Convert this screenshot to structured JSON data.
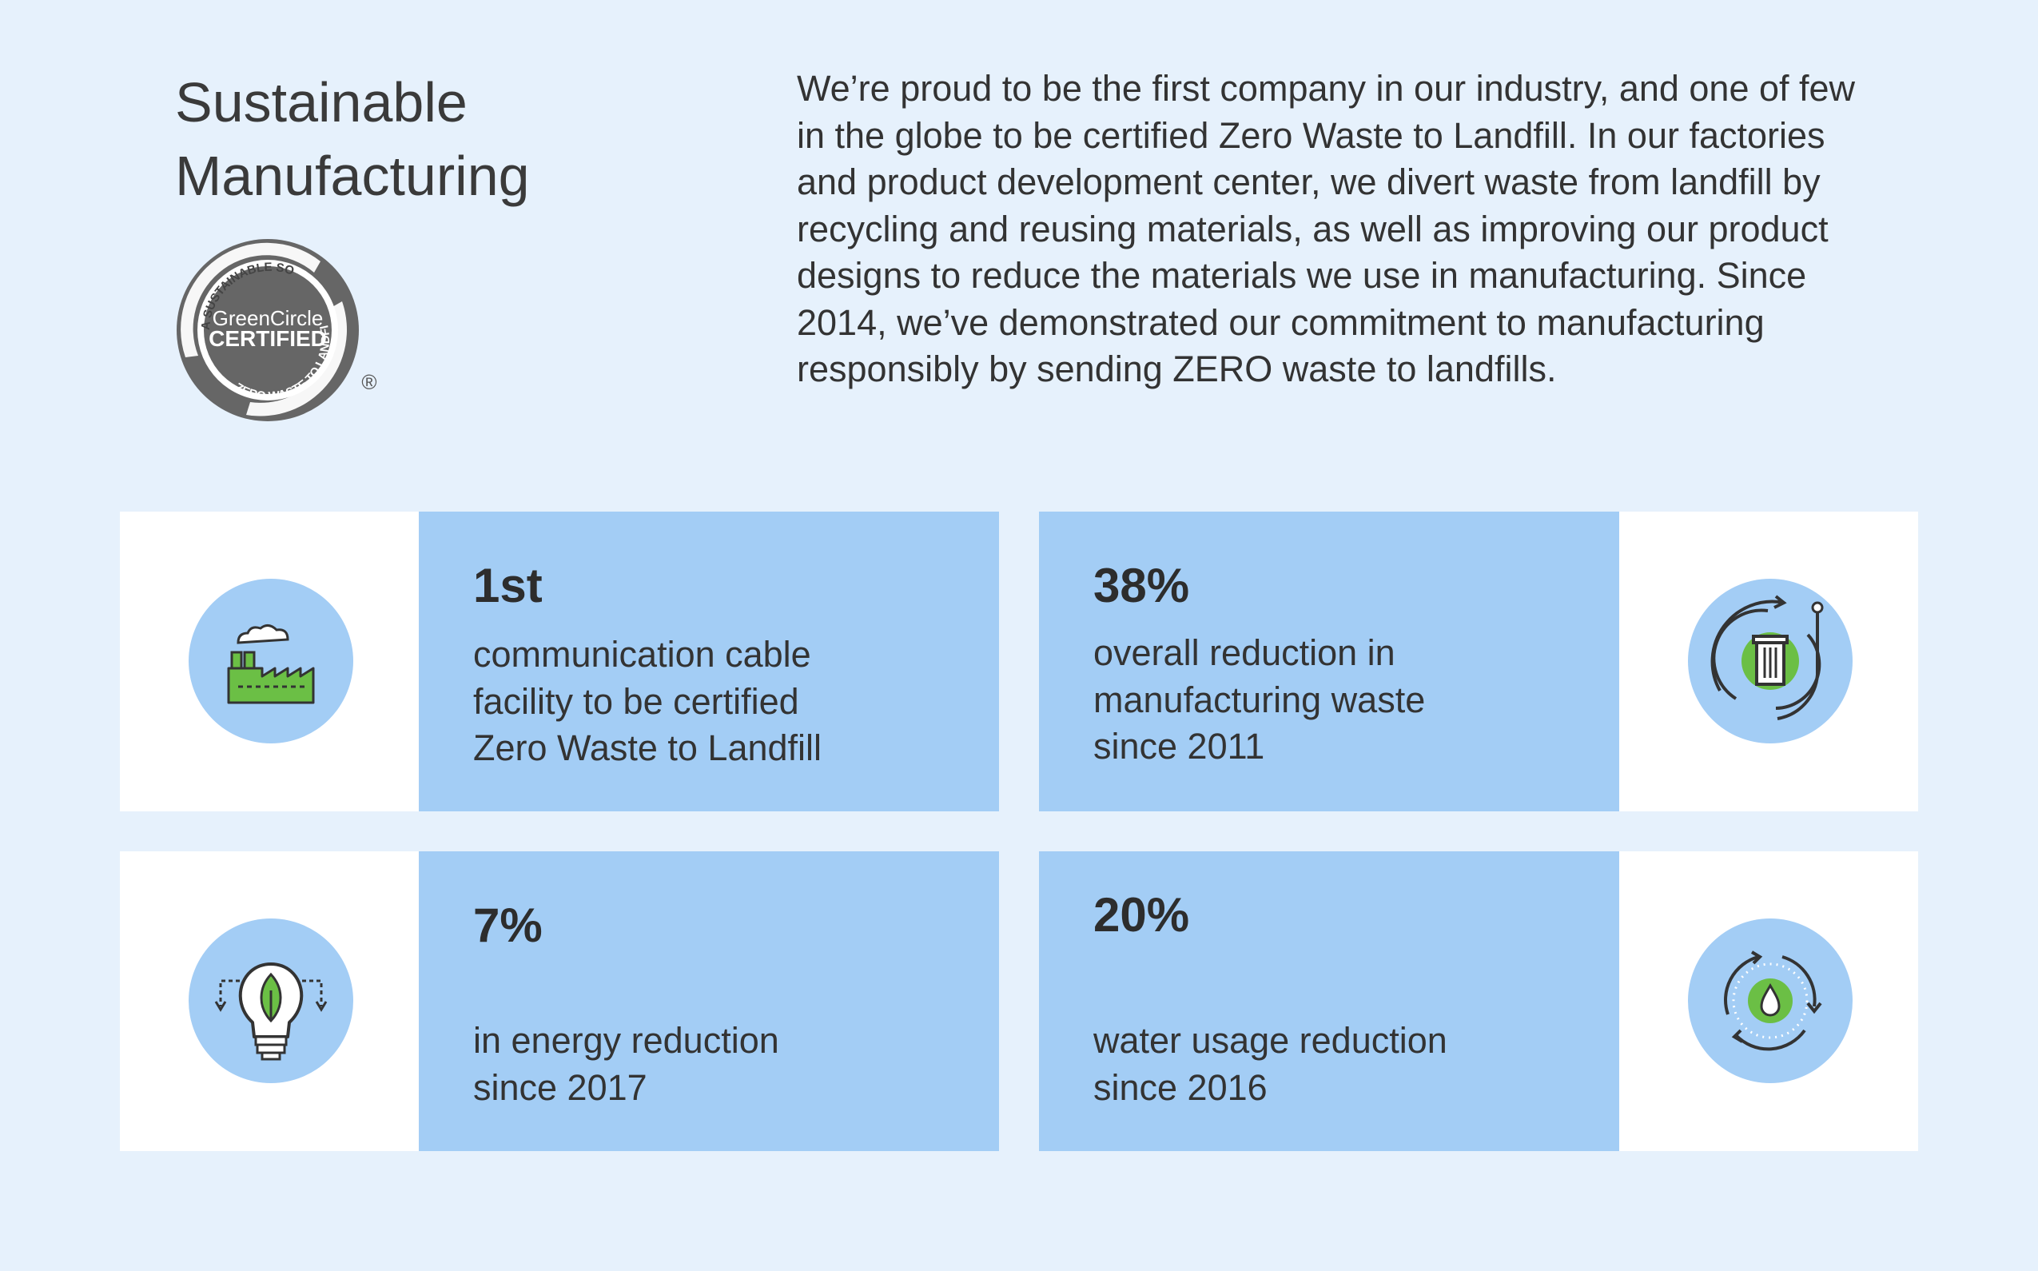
{
  "header": {
    "title_lines": [
      "Sustainable",
      "Manufacturing"
    ],
    "intro": "We’re proud to be the first company in our industry, and one of few in the globe to be certified Zero Waste to Landfill. In our factories and product development center, we divert waste from landfill by recycling and reusing materials, as well as improving our product designs to reduce the materials we use in manufacturing. Since 2014, we’ve demonstrated our commitment to manufacturing responsibly by sending ZERO waste to landfills."
  },
  "badge": {
    "ring_top": "A SUSTAINABLE SOLUTION",
    "ring_bottom": "ZERO WASTE TO LANDFILL",
    "brand": "GreenCircle",
    "certified": "CERTIFIED",
    "registered": "®"
  },
  "stats": [
    {
      "value": "1st",
      "lines": [
        "communication cable",
        "facility to be certified",
        "Zero Waste to Landfill"
      ],
      "icon": "factory-icon"
    },
    {
      "value": "38%",
      "lines": [
        "overall reduction in",
        "manufacturing waste",
        "since 2011"
      ],
      "icon": "recycle-bin-icon"
    },
    {
      "value": "7%",
      "lines": [
        "in energy reduction",
        "since 2017"
      ],
      "icon": "eco-lightbulb-icon"
    },
    {
      "value": "20%",
      "lines": [
        "water usage reduction",
        "since 2016"
      ],
      "icon": "water-drop-cycle-icon"
    }
  ],
  "colors": {
    "background": "#e6f1fc",
    "card_panel": "#a3cdf5",
    "icon_circle": "#a3cdf5",
    "accent_green": "#6bbf45",
    "badge_gray": "#666666"
  }
}
